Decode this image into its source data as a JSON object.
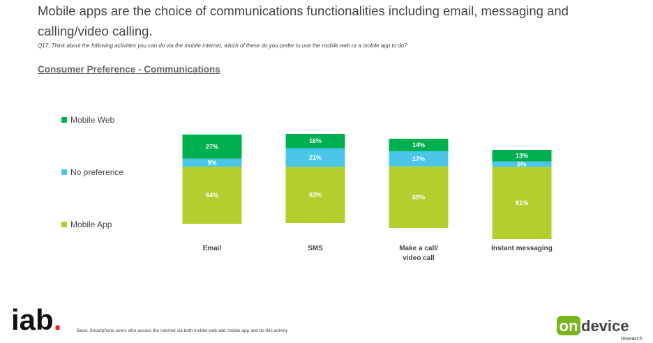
{
  "headline": "Mobile apps are the choice of communications functionalities including email, messaging and calling/video calling.",
  "question": "Q17. Think about the following activities you can do via the mobile internet, which of these do you prefer to use the mobile web or a mobile app to do?",
  "subtitle": "Consumer Preference - Communications",
  "base_note": "Base: Smartphone users who access the internet via both mobile web add mobile app and do this activity",
  "logos": {
    "iab": "iab.",
    "ondevice_main": "ondevice",
    "ondevice_sub": "research"
  },
  "colors": {
    "mobile_web": "#00b050",
    "no_preference": "#4bc6e8",
    "mobile_app": "#b3cf2f",
    "iab_red": "#e8212a"
  },
  "chart_data": {
    "type": "bar",
    "stacked": true,
    "title": "Consumer Preference - Communications",
    "categories": [
      [
        "Email"
      ],
      [
        "SMS"
      ],
      [
        "Make a call/",
        "video call"
      ],
      [
        "Instant messaging"
      ]
    ],
    "series": [
      {
        "name": "Mobile App",
        "color": "#b3cf2f",
        "values": [
          64,
          63,
          69,
          81
        ]
      },
      {
        "name": "No preference",
        "color": "#4bc6e8",
        "values": [
          9,
          21,
          17,
          6
        ]
      },
      {
        "name": "Mobile Web",
        "color": "#00b050",
        "values": [
          27,
          16,
          14,
          13
        ]
      }
    ],
    "value_suffix": "%",
    "legend_order": [
      "Mobile Web",
      "No preference",
      "Mobile App"
    ],
    "legend_position": "left",
    "grid": false
  }
}
